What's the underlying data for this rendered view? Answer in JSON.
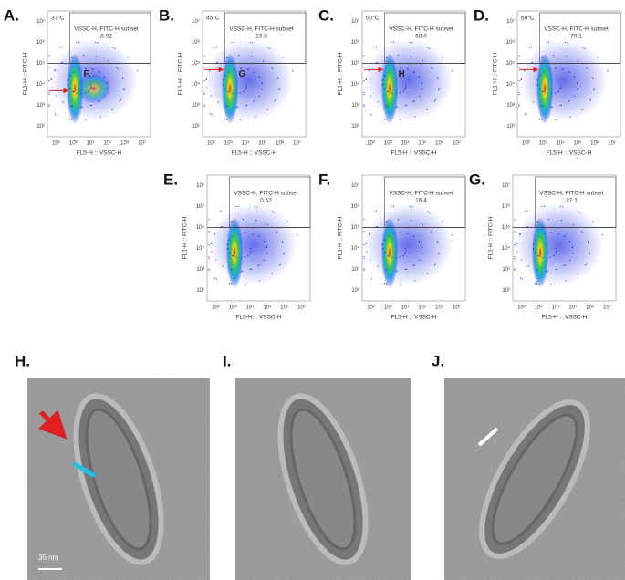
{
  "flow_panels": [
    {
      "label": "A.",
      "temperature": "37°C",
      "gate": "VSSC-H, FITC-H subset",
      "percent": "8.92",
      "annotation": "F."
    },
    {
      "label": "B.",
      "temperature": "45°C",
      "gate": "VSSC-H, FITC-H subset",
      "percent": "19.8",
      "annotation": "G"
    },
    {
      "label": "C.",
      "temperature": "50°C",
      "gate": "VSSC-H, FITC-H subset",
      "percent": "68.0",
      "annotation": "H"
    },
    {
      "label": "D.",
      "temperature": "60°C",
      "gate": "VSSC-H, FITC-H subset",
      "percent": "79.1"
    },
    {
      "label": "E.",
      "gate": "VSSC-H, FITC-H subset",
      "percent": "0.52"
    },
    {
      "label": "F.",
      "gate": "VSSC-H, FITC-H subset",
      "percent": "16.4"
    },
    {
      "label": "G.",
      "gate": "VSSC-H, FITC-H subset",
      "percent": "37.1"
    }
  ],
  "y_axis_label": "FL1-H :: FITC-H",
  "x_axis_label": "FL5-H :: VSSC-H",
  "ticks": [
    "10²",
    "10³",
    "10⁴",
    "10⁵",
    "10⁶",
    "10⁷"
  ],
  "em_panels": [
    {
      "label": "H."
    },
    {
      "label": "I."
    },
    {
      "label": "J."
    }
  ],
  "scale_bar": "35 nm"
}
